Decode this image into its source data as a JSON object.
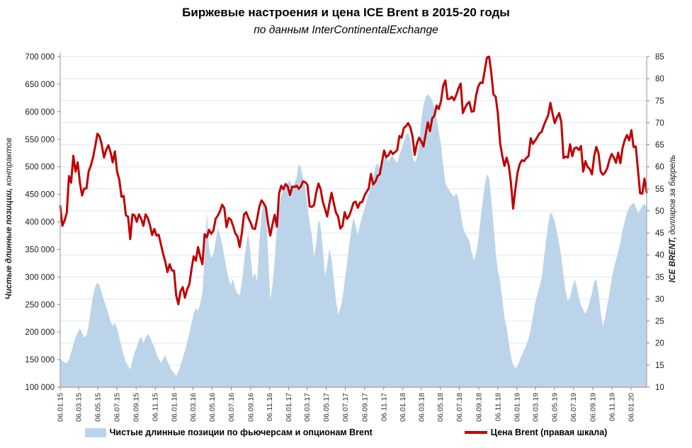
{
  "header": {
    "title": "Биржевые настроения и цена ICE Brent в 2015-20 годы",
    "subtitle": "по данным InterContinentalExchange"
  },
  "colors": {
    "area": "#BCD4E9",
    "line": "#C00000",
    "grid": "#DEE7F3",
    "axis_line": "#A6A6A6",
    "tick": "#808080",
    "y_label": "#1a1a1a",
    "x_label": "#333333"
  },
  "legend": {
    "items": [
      {
        "label": "Чистые длинные позиции по фьючерсам и опционам Brent",
        "type": "area"
      },
      {
        "label": "Цена Brent (правая шкала)",
        "type": "line"
      }
    ]
  },
  "chart_data": {
    "type": "area+line combo, weekly data 06.01.2015 - 25.02.2020",
    "title": "Биржевые настроения и цена ICE Brent в 2015-20 годы",
    "subtitle": "по данным InterContinentalExchange",
    "grid": "horizontal, every 5 USD of right axis",
    "legend_position": "bottom center",
    "left_axis": {
      "title_strong": "Чистые длинные позиции,",
      "title_rest": " контрактов",
      "min": 100000,
      "max": 700000,
      "step": 50000
    },
    "right_axis": {
      "title_strong": "ICE BRENT,",
      "title_rest": " долларов за баррель",
      "min": 10,
      "max": 85,
      "step": 5
    },
    "x_ticks": [
      {
        "label": "06.01.15",
        "week": 0
      },
      {
        "label": "06.03.15",
        "week": 8.43
      },
      {
        "label": "06.05.15",
        "week": 17.14
      },
      {
        "label": "06.07.15",
        "week": 25.86
      },
      {
        "label": "06.09.15",
        "week": 34.71
      },
      {
        "label": "06.11.15",
        "week": 43.43
      },
      {
        "label": "06.01.16",
        "week": 52.14
      },
      {
        "label": "06.03.16",
        "week": 60.71
      },
      {
        "label": "06.05.16",
        "week": 69.43
      },
      {
        "label": "06.07.16",
        "week": 78.14
      },
      {
        "label": "06.09.16",
        "week": 87.0
      },
      {
        "label": "06.11.16",
        "week": 95.71
      },
      {
        "label": "06.01.17",
        "week": 104.43
      },
      {
        "label": "06.03.17",
        "week": 112.86
      },
      {
        "label": "06.05.17",
        "week": 121.57
      },
      {
        "label": "06.07.17",
        "week": 130.29
      },
      {
        "label": "06.09.17",
        "week": 139.14
      },
      {
        "label": "06.11.17",
        "week": 147.86
      },
      {
        "label": "06.01.18",
        "week": 156.57
      },
      {
        "label": "06.03.18",
        "week": 165.0
      },
      {
        "label": "06.05.18",
        "week": 173.71
      },
      {
        "label": "06.07.18",
        "week": 182.43
      },
      {
        "label": "06.09.18",
        "week": 191.29
      },
      {
        "label": "06.11.18",
        "week": 200.0
      },
      {
        "label": "06.01.19",
        "week": 208.71
      },
      {
        "label": "06.03.19",
        "week": 217.14
      },
      {
        "label": "06.05.19",
        "week": 225.86
      },
      {
        "label": "06.07.19",
        "week": 234.57
      },
      {
        "label": "06.09.19",
        "week": 243.43
      },
      {
        "label": "06.11.19",
        "week": 252.14
      },
      {
        "label": "06.01.20",
        "week": 260.86
      }
    ],
    "series": [
      {
        "name": "Чистые длинные позиции по фьючерсам и опционам Brent",
        "type": "area",
        "axis": "left",
        "unit": "contracts",
        "scale": 1000,
        "values": [
          152,
          148,
          145,
          143,
          150,
          163,
          178,
          190,
          200,
          207,
          198,
          190,
          194,
          212,
          242,
          265,
          282,
          290,
          284,
          271,
          257,
          246,
          233,
          219,
          211,
          217,
          206,
          191,
          173,
          159,
          146,
          139,
          132,
          149,
          163,
          172,
          185,
          192,
          180,
          190,
          197,
          191,
          181,
          173,
          161,
          151,
          144,
          151,
          158,
          147,
          138,
          130,
          126,
          120,
          128,
          140,
          152,
          166,
          182,
          198,
          216,
          234,
          244,
          238,
          252,
          272,
          335,
          418,
          352,
          334,
          342,
          365,
          388,
          377,
          360,
          338,
          315,
          296,
          285,
          296,
          278,
          270,
          266,
          290,
          325,
          360,
          381,
          340,
          297,
          308,
          291,
          365,
          412,
          437,
          420,
          345,
          258,
          285,
          330,
          391,
          425,
          448,
          458,
          468,
          470,
          476,
          462,
          470,
          481,
          505,
          498,
          480,
          462,
          430,
          398,
          376,
          335,
          362,
          405,
          392,
          352,
          302,
          322,
          352,
          332,
          296,
          258,
          232,
          243,
          262,
          292,
          322,
          356,
          386,
          408,
          394,
          376,
          396,
          410,
          422,
          438,
          452,
          464,
          478,
          500,
          507,
          496,
          503,
          513,
          521,
          509,
          517,
          520,
          512,
          507,
          522,
          532,
          546,
          557,
          563,
          549,
          521,
          507,
          516,
          541,
          585,
          612,
          626,
          632,
          628,
          620,
          606,
          589,
          563,
          541,
          502,
          471,
          462,
          456,
          450,
          446,
          453,
          441,
          416,
          391,
          379,
          372,
          366,
          345,
          331,
          341,
          366,
          401,
          436,
          466,
          487,
          479,
          441,
          396,
          346,
          311,
          294,
          261,
          226,
          208,
          181,
          156,
          140,
          134,
          139,
          149,
          159,
          168,
          176,
          188,
          205,
          228,
          252,
          268,
          282,
          298,
          331,
          366,
          396,
          418,
          412,
          401,
          383,
          361,
          336,
          303,
          273,
          256,
          264,
          281,
          296,
          283,
          263,
          249,
          241,
          233,
          243,
          256,
          271,
          291,
          296,
          271,
          236,
          211,
          226,
          249,
          271,
          296,
          316,
          331,
          346,
          363,
          386,
          401,
          416,
          426,
          431,
          435,
          427,
          417,
          421,
          429,
          433,
          424
        ]
      },
      {
        "name": "Цена Brent (правая шкала)",
        "type": "line",
        "axis": "right",
        "unit": "USD per barrel",
        "scale": 1,
        "values": [
          51.1,
          46.6,
          47.8,
          49.6,
          57.9,
          56.4,
          62.5,
          58.9,
          61.0,
          56.4,
          53.5,
          55.1,
          55.1,
          59.0,
          60.3,
          62.1,
          64.6,
          67.5,
          66.9,
          65.0,
          62.1,
          63.8,
          64.9,
          63.3,
          61.0,
          63.5,
          58.9,
          57.1,
          53.2,
          53.4,
          49.0,
          48.7,
          43.6,
          49.2,
          49.0,
          47.5,
          49.2,
          48.2,
          46.6,
          49.2,
          48.4,
          46.8,
          44.5,
          45.9,
          44.4,
          44.6,
          42.5,
          40.3,
          38.5,
          36.1,
          37.9,
          36.5,
          36.4,
          30.9,
          28.8,
          31.8,
          32.7,
          30.3,
          32.2,
          33.3,
          36.8,
          39.7,
          38.7,
          41.8,
          39.6,
          37.9,
          44.7,
          44.0,
          45.7,
          44.8,
          45.5,
          48.2,
          48.9,
          49.9,
          51.4,
          50.6,
          46.3,
          48.4,
          48.0,
          46.6,
          44.9,
          44.2,
          41.8,
          44.9,
          49.2,
          49.7,
          48.4,
          47.3,
          46.0,
          45.9,
          48.2,
          50.9,
          52.4,
          51.7,
          50.8,
          47.1,
          44.4,
          46.9,
          49.1,
          46.4,
          53.9,
          55.7,
          54.9,
          56.1,
          55.5,
          53.6,
          55.5,
          55.4,
          55.7,
          55.0,
          55.6,
          56.7,
          56.5,
          55.9,
          51.0,
          50.9,
          51.3,
          54.2,
          56.2,
          54.9,
          52.1,
          50.5,
          48.7,
          51.6,
          54.1,
          51.8,
          49.6,
          48.7,
          46.0,
          46.6,
          49.7,
          48.2,
          48.8,
          50.2,
          51.8,
          52.1,
          50.7,
          51.9,
          52.0,
          53.4,
          54.3,
          55.1,
          58.4,
          56.0,
          56.6,
          57.9,
          58.3,
          61.0,
          63.7,
          62.2,
          62.6,
          63.6,
          62.9,
          63.3,
          63.8,
          67.0,
          66.6,
          68.8,
          69.2,
          69.9,
          69.0,
          66.9,
          62.7,
          65.3,
          66.6,
          65.8,
          64.6,
          67.4,
          70.1,
          68.1,
          71.0,
          71.6,
          73.9,
          73.1,
          74.9,
          78.4,
          79.6,
          75.4,
          75.4,
          75.9,
          75.1,
          76.3,
          77.8,
          78.9,
          72.2,
          73.4,
          74.3,
          74.7,
          72.5,
          72.6,
          76.0,
          78.2,
          79.1,
          79.0,
          81.9,
          84.8,
          85.0,
          81.4,
          76.4,
          75.9,
          72.1,
          65.5,
          62.5,
          60.2,
          62.1,
          60.2,
          56.3,
          50.5,
          54.9,
          58.7,
          60.6,
          61.5,
          61.3,
          62.0,
          62.4,
          66.5,
          65.2,
          65.9,
          66.7,
          67.6,
          67.9,
          69.4,
          70.6,
          71.7,
          74.5,
          72.1,
          69.9,
          71.2,
          72.2,
          70.1,
          62.0,
          62.3,
          62.1,
          65.1,
          62.4,
          64.2,
          64.4,
          63.8,
          64.7,
          58.9,
          61.3,
          60.0,
          59.5,
          58.3,
          62.4,
          64.5,
          63.1,
          58.9,
          58.2,
          58.7,
          59.7,
          61.6,
          62.9,
          62.1,
          60.9,
          63.2,
          60.8,
          64.3,
          66.1,
          67.2,
          66.0,
          68.3,
          64.5,
          64.6,
          59.5,
          54.0,
          53.9,
          57.3,
          54.2
        ]
      }
    ]
  }
}
